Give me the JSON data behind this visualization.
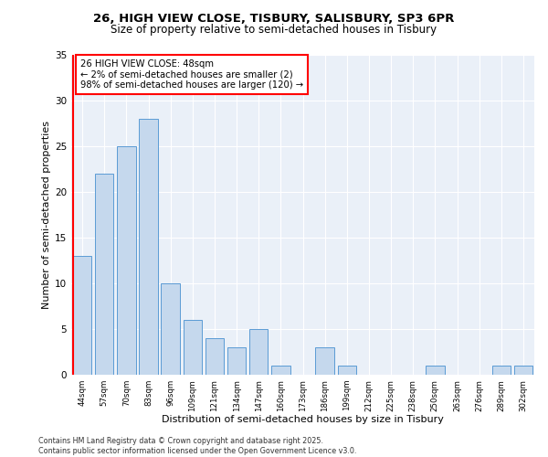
{
  "title_line1": "26, HIGH VIEW CLOSE, TISBURY, SALISBURY, SP3 6PR",
  "title_line2": "Size of property relative to semi-detached houses in Tisbury",
  "xlabel": "Distribution of semi-detached houses by size in Tisbury",
  "ylabel": "Number of semi-detached properties",
  "categories": [
    "44sqm",
    "57sqm",
    "70sqm",
    "83sqm",
    "96sqm",
    "109sqm",
    "121sqm",
    "134sqm",
    "147sqm",
    "160sqm",
    "173sqm",
    "186sqm",
    "199sqm",
    "212sqm",
    "225sqm",
    "238sqm",
    "250sqm",
    "263sqm",
    "276sqm",
    "289sqm",
    "302sqm"
  ],
  "values": [
    13,
    22,
    25,
    28,
    10,
    6,
    4,
    3,
    5,
    1,
    0,
    3,
    1,
    0,
    0,
    0,
    1,
    0,
    0,
    1,
    1
  ],
  "bar_color": "#c5d8ed",
  "bar_edge_color": "#5b9bd5",
  "highlight_color": "#ff0000",
  "annotation_text": "26 HIGH VIEW CLOSE: 48sqm\n← 2% of semi-detached houses are smaller (2)\n98% of semi-detached houses are larger (120) →",
  "annotation_box_color": "#ffffff",
  "annotation_box_edge": "#ff0000",
  "ylim": [
    0,
    35
  ],
  "yticks": [
    0,
    5,
    10,
    15,
    20,
    25,
    30,
    35
  ],
  "background_color": "#eaf0f8",
  "footer_line1": "Contains HM Land Registry data © Crown copyright and database right 2025.",
  "footer_line2": "Contains public sector information licensed under the Open Government Licence v3.0."
}
